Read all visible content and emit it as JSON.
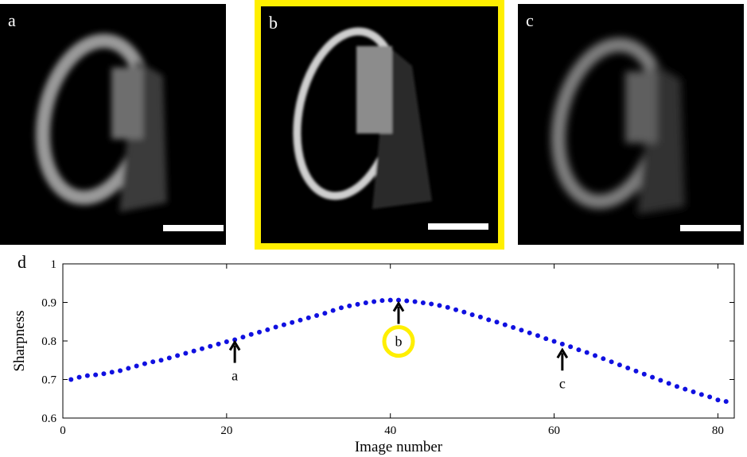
{
  "panels": [
    {
      "id": "a",
      "label": "a"
    },
    {
      "id": "b",
      "label": "b"
    },
    {
      "id": "c",
      "label": "c"
    }
  ],
  "highlight_color": "#ffef00",
  "chart_data": {
    "type": "scatter",
    "panel_label": "d",
    "xlabel": "Image number",
    "ylabel": "Sharpness",
    "xlim": [
      0,
      82
    ],
    "ylim": [
      0.6,
      1.0
    ],
    "xticks": [
      0,
      20,
      40,
      60,
      80
    ],
    "yticks": [
      0.6,
      0.7,
      0.8,
      0.9,
      1
    ],
    "ytick_labels": [
      "0.6",
      "0.7",
      "0.8",
      "0.9",
      "1"
    ],
    "marker_color": "#1010e0",
    "x": [
      1,
      2,
      3,
      4,
      5,
      6,
      7,
      8,
      9,
      10,
      11,
      12,
      13,
      14,
      15,
      16,
      17,
      18,
      19,
      20,
      21,
      22,
      23,
      24,
      25,
      26,
      27,
      28,
      29,
      30,
      31,
      32,
      33,
      34,
      35,
      36,
      37,
      38,
      39,
      40,
      41,
      42,
      43,
      44,
      45,
      46,
      47,
      48,
      49,
      50,
      51,
      52,
      53,
      54,
      55,
      56,
      57,
      58,
      59,
      60,
      61,
      62,
      63,
      64,
      65,
      66,
      67,
      68,
      69,
      70,
      71,
      72,
      73,
      74,
      75,
      76,
      77,
      78,
      79,
      80,
      81
    ],
    "y": [
      0.7,
      0.706,
      0.71,
      0.712,
      0.715,
      0.719,
      0.723,
      0.729,
      0.735,
      0.741,
      0.746,
      0.75,
      0.756,
      0.762,
      0.768,
      0.774,
      0.78,
      0.786,
      0.792,
      0.798,
      0.803,
      0.81,
      0.817,
      0.823,
      0.829,
      0.836,
      0.842,
      0.848,
      0.854,
      0.86,
      0.866,
      0.872,
      0.879,
      0.886,
      0.891,
      0.895,
      0.899,
      0.902,
      0.905,
      0.906,
      0.906,
      0.904,
      0.902,
      0.899,
      0.896,
      0.892,
      0.887,
      0.881,
      0.875,
      0.868,
      0.862,
      0.855,
      0.849,
      0.842,
      0.835,
      0.828,
      0.821,
      0.814,
      0.806,
      0.799,
      0.792,
      0.785,
      0.777,
      0.77,
      0.762,
      0.754,
      0.746,
      0.738,
      0.73,
      0.722,
      0.714,
      0.706,
      0.698,
      0.69,
      0.682,
      0.675,
      0.668,
      0.661,
      0.655,
      0.647,
      0.643
    ],
    "annotations": [
      {
        "text": "a",
        "x": 21,
        "y": 0.805
      },
      {
        "text": "b",
        "x": 41,
        "y": 0.906,
        "circled": true
      },
      {
        "text": "c",
        "x": 61,
        "y": 0.785
      }
    ]
  }
}
